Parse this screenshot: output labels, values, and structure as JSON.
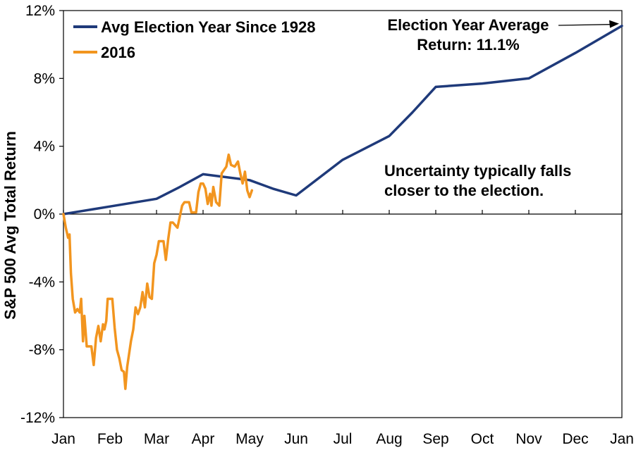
{
  "chart_data": {
    "type": "line",
    "title": "",
    "xlabel": "",
    "ylabel": "S&P 500 Avg Total Return",
    "x_ticks": [
      "Jan",
      "Feb",
      "Mar",
      "Apr",
      "May",
      "Jun",
      "Jul",
      "Aug",
      "Sep",
      "Oct",
      "Nov",
      "Dec",
      "Jan"
    ],
    "y_ticks": [
      "12%",
      "8%",
      "4%",
      "0%",
      "-4%",
      "-8%",
      "-12%"
    ],
    "y_tick_values": [
      12,
      8,
      4,
      0,
      -4,
      -8,
      -12
    ],
    "ylim": [
      -12,
      12
    ],
    "xlim": [
      0,
      12
    ],
    "grid": false,
    "legend_position": "top-left",
    "series": [
      {
        "name": "Avg Election Year Since 1928",
        "color": "#1f3a7a",
        "points": [
          [
            0,
            0.0
          ],
          [
            1,
            0.45
          ],
          [
            2,
            0.9
          ],
          [
            2.5,
            1.6
          ],
          [
            3,
            2.35
          ],
          [
            4,
            2.0
          ],
          [
            4.5,
            1.5
          ],
          [
            5,
            1.1
          ],
          [
            6,
            3.2
          ],
          [
            7,
            4.6
          ],
          [
            7.5,
            6.0
          ],
          [
            8,
            7.5
          ],
          [
            9,
            7.7
          ],
          [
            10,
            8.0
          ],
          [
            11,
            9.5
          ],
          [
            12,
            11.1
          ]
        ]
      },
      {
        "name": "2016",
        "color": "#f2951f",
        "points": [
          [
            0,
            0.0
          ],
          [
            0.05,
            -0.8
          ],
          [
            0.1,
            -1.4
          ],
          [
            0.13,
            -1.2
          ],
          [
            0.16,
            -3.5
          ],
          [
            0.2,
            -5.0
          ],
          [
            0.25,
            -5.8
          ],
          [
            0.3,
            -5.6
          ],
          [
            0.35,
            -5.8
          ],
          [
            0.38,
            -5.0
          ],
          [
            0.42,
            -7.5
          ],
          [
            0.45,
            -6.0
          ],
          [
            0.5,
            -7.8
          ],
          [
            0.55,
            -7.8
          ],
          [
            0.6,
            -7.8
          ],
          [
            0.65,
            -8.9
          ],
          [
            0.7,
            -7.3
          ],
          [
            0.75,
            -6.6
          ],
          [
            0.8,
            -7.5
          ],
          [
            0.85,
            -6.5
          ],
          [
            0.88,
            -6.8
          ],
          [
            0.92,
            -6.3
          ],
          [
            0.95,
            -5.0
          ],
          [
            1.0,
            -5.0
          ],
          [
            1.05,
            -5.0
          ],
          [
            1.1,
            -6.7
          ],
          [
            1.15,
            -8.0
          ],
          [
            1.2,
            -8.5
          ],
          [
            1.25,
            -9.2
          ],
          [
            1.3,
            -9.3
          ],
          [
            1.33,
            -10.3
          ],
          [
            1.37,
            -9.0
          ],
          [
            1.45,
            -7.5
          ],
          [
            1.5,
            -6.8
          ],
          [
            1.55,
            -5.5
          ],
          [
            1.6,
            -5.9
          ],
          [
            1.65,
            -5.5
          ],
          [
            1.7,
            -4.6
          ],
          [
            1.75,
            -5.5
          ],
          [
            1.8,
            -4.1
          ],
          [
            1.85,
            -4.9
          ],
          [
            1.9,
            -5.0
          ],
          [
            1.95,
            -2.9
          ],
          [
            2.0,
            -2.4
          ],
          [
            2.05,
            -1.6
          ],
          [
            2.15,
            -1.6
          ],
          [
            2.2,
            -2.7
          ],
          [
            2.25,
            -1.5
          ],
          [
            2.3,
            -0.5
          ],
          [
            2.35,
            -0.5
          ],
          [
            2.45,
            -0.8
          ],
          [
            2.55,
            0.5
          ],
          [
            2.6,
            0.7
          ],
          [
            2.7,
            0.7
          ],
          [
            2.75,
            0.1
          ],
          [
            2.85,
            0.1
          ],
          [
            2.9,
            1.3
          ],
          [
            2.95,
            1.8
          ],
          [
            3.0,
            1.8
          ],
          [
            3.05,
            1.5
          ],
          [
            3.1,
            0.6
          ],
          [
            3.15,
            1.2
          ],
          [
            3.18,
            0.5
          ],
          [
            3.22,
            1.6
          ],
          [
            3.28,
            0.7
          ],
          [
            3.35,
            0.5
          ],
          [
            3.4,
            2.4
          ],
          [
            3.45,
            2.6
          ],
          [
            3.5,
            2.8
          ],
          [
            3.55,
            3.5
          ],
          [
            3.6,
            2.9
          ],
          [
            3.68,
            2.8
          ],
          [
            3.75,
            3.1
          ],
          [
            3.8,
            2.4
          ],
          [
            3.85,
            1.8
          ],
          [
            3.9,
            2.5
          ],
          [
            3.95,
            1.4
          ],
          [
            4.0,
            1.0
          ],
          [
            4.05,
            1.4
          ]
        ]
      }
    ],
    "annotations": [
      {
        "lines": [
          "Election Year Average",
          "Return: 11.1%"
        ],
        "arrow_to": [
          12,
          11.1
        ]
      },
      {
        "lines": [
          "Uncertainty typically falls",
          "closer to the election."
        ]
      }
    ]
  }
}
